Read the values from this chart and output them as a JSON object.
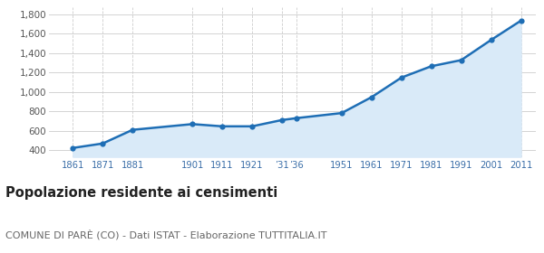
{
  "years": [
    1861,
    1871,
    1881,
    1901,
    1911,
    1921,
    1931,
    1936,
    1951,
    1961,
    1971,
    1981,
    1991,
    2001,
    2011
  ],
  "population": [
    422,
    468,
    609,
    668,
    645,
    645,
    710,
    730,
    782,
    946,
    1148,
    1265,
    1328,
    1536,
    1735
  ],
  "yticks": [
    400,
    600,
    800,
    1000,
    1200,
    1400,
    1600,
    1800
  ],
  "ylim": [
    330,
    1870
  ],
  "xlim": [
    1853,
    2016
  ],
  "line_color": "#1e6eb5",
  "fill_color": "#d9eaf8",
  "marker_color": "#1e6eb5",
  "bg_color": "#ffffff",
  "grid_color": "#cccccc",
  "title": "Popolazione residente ai censimenti",
  "subtitle": "COMUNE DI PARÈ (CO) - Dati ISTAT - Elaborazione TUTTITALIA.IT",
  "title_fontsize": 10.5,
  "subtitle_fontsize": 8.0,
  "tick_label_color": "#3a6ea8",
  "ytick_label_color": "#555555"
}
